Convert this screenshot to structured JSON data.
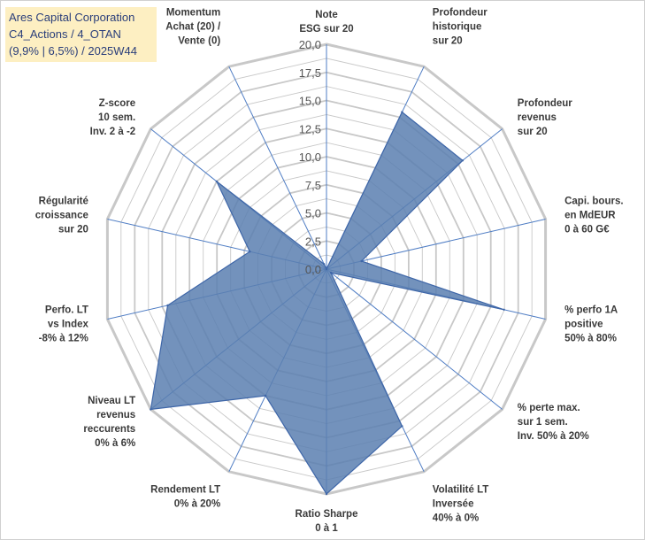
{
  "title": {
    "line1": "Ares Capital Corporation",
    "line2": "C4_Actions / 4_OTAN",
    "line3": "(9,9% | 6,5%) / 2025W44"
  },
  "colors": {
    "grid": "#c8c8c8",
    "axis": "#4f7dc4",
    "fill": "#5b7fb0",
    "stroke": "#3e66a8",
    "title_bg": "#fdefc2",
    "title_text": "#2a3e7a"
  },
  "chart_data": {
    "type": "radar",
    "title": "Ares Capital Corporation C4_Actions / 4_OTAN (9,9% | 6,5%) / 2025W44",
    "axes": [
      [
        "Note",
        "ESG sur 20"
      ],
      [
        "Profondeur",
        "historique",
        "sur 20"
      ],
      [
        "Profondeur",
        "revenus",
        "sur 20"
      ],
      [
        "Capi. bours.",
        "en MdEUR",
        "0 à 60 G€"
      ],
      [
        "% perfo 1A",
        "positive",
        "50% à 80%"
      ],
      [
        "% perte max.",
        "sur 1 sem.",
        "Inv. 50% à 20%"
      ],
      [
        "Volatilité LT",
        "Inversée",
        "40% à 0%"
      ],
      [
        "Ratio Sharpe",
        "0 à 1"
      ],
      [
        "Rendement LT",
        "0% à 20%"
      ],
      [
        "Niveau LT",
        "revenus",
        "reccurents",
        "0% à 6%"
      ],
      [
        "Perfo. LT",
        "vs Index",
        "-8% à 12%"
      ],
      [
        "Régularité",
        "croissance",
        "sur 20"
      ],
      [
        "Z-score",
        "10 sem.",
        "Inv. 2 à -2"
      ],
      [
        "Momentum",
        "Achat (20) /",
        "Vente (0)"
      ]
    ],
    "series": [
      {
        "name": "Ares Capital Corporation",
        "values": [
          0,
          15.5,
          15.5,
          3.2,
          16.2,
          0.5,
          15.5,
          20,
          12.5,
          20,
          14.5,
          7,
          12.5,
          0.5
        ]
      }
    ],
    "rlim": [
      0,
      20
    ],
    "ticks": [
      "0,0",
      "2,5",
      "5,0",
      "7,5",
      "10,0",
      "12,5",
      "15,0",
      "17,5",
      "20,0"
    ],
    "tick_values": [
      0,
      2.5,
      5,
      7.5,
      10,
      12.5,
      15,
      17.5,
      20
    ],
    "grid_steps": 16
  }
}
